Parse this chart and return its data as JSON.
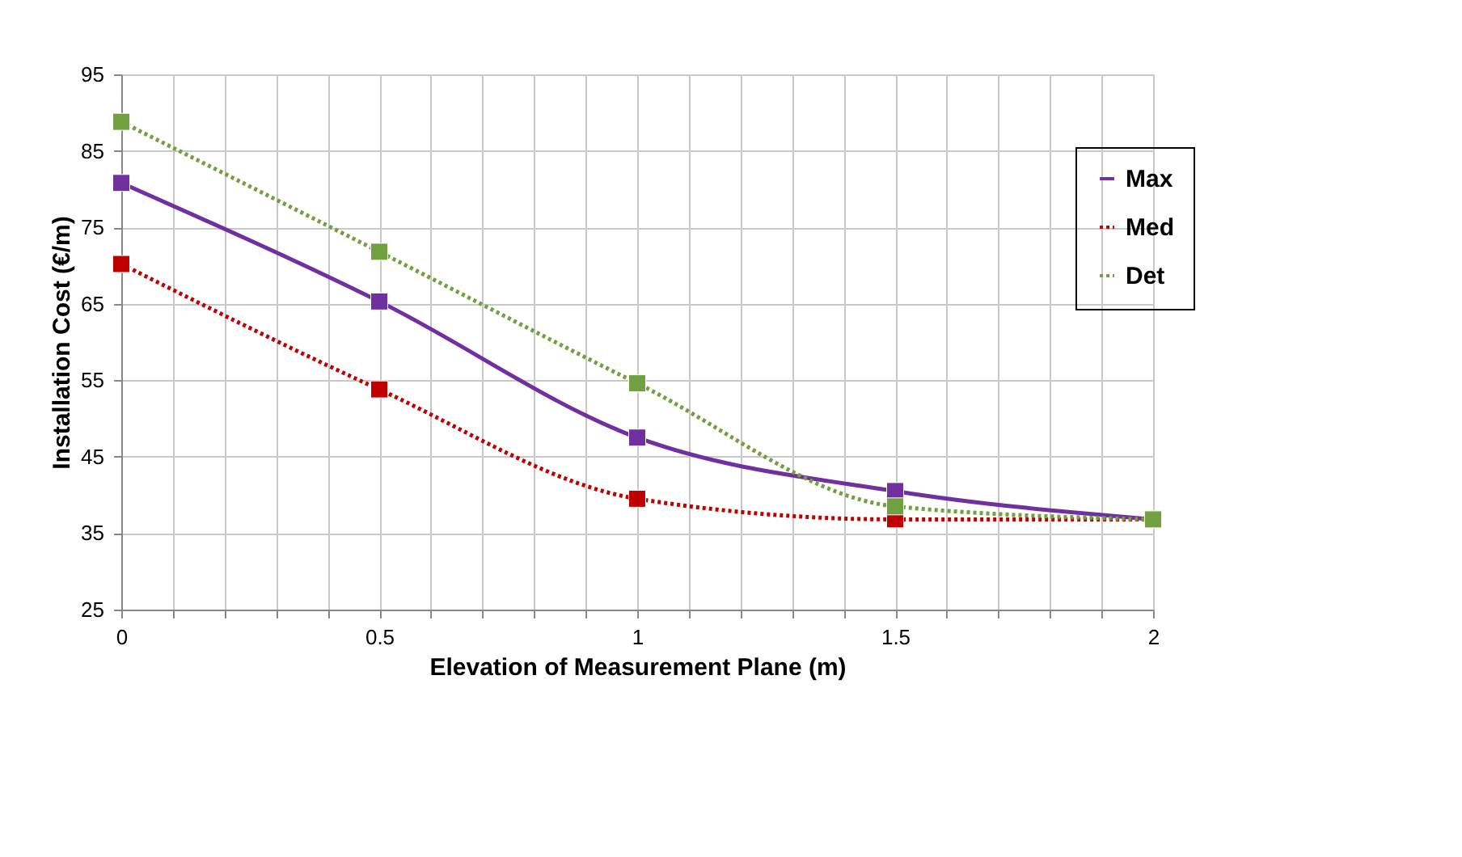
{
  "chart_data": {
    "type": "line",
    "xlabel": "Elevation of Measurement Plane  (m)",
    "ylabel": "Installation Cost (€/m)",
    "x": [
      0,
      0.5,
      1,
      1.5,
      2
    ],
    "series": [
      {
        "name": "Max",
        "color": "#7030a0",
        "values": [
          80.8,
          65.3,
          47.5,
          40.5,
          36.8
        ],
        "line_style": "solid"
      },
      {
        "name": "Med",
        "color": "#c00000",
        "values": [
          70.2,
          53.8,
          39.5,
          36.8,
          36.8
        ],
        "line_style": "dotted"
      },
      {
        "name": "Det",
        "color": "#70a040",
        "values": [
          88.8,
          71.8,
          54.6,
          38.5,
          36.8
        ],
        "line_style": "dotted"
      }
    ],
    "xlim": [
      0,
      2
    ],
    "xticks": [
      0,
      {
        "value": 0.1,
        "label": null
      },
      {
        "value": 0.2,
        "label": null
      },
      {
        "value": 0.3,
        "label": null
      },
      {
        "value": 0.4,
        "label": null
      },
      0.5,
      {
        "value": 0.6,
        "label": null
      },
      {
        "value": 0.7,
        "label": null
      },
      {
        "value": 0.8,
        "label": null
      },
      {
        "value": 0.9,
        "label": null
      },
      1,
      {
        "value": 1.1,
        "label": null
      },
      {
        "value": 1.2,
        "label": null
      },
      {
        "value": 1.3,
        "label": null
      },
      {
        "value": 1.4,
        "label": null
      },
      1.5,
      {
        "value": 1.6,
        "label": null
      },
      {
        "value": 1.7,
        "label": null
      },
      {
        "value": 1.8,
        "label": null
      },
      {
        "value": 1.9,
        "label": null
      },
      2
    ],
    "ylim": [
      25,
      95
    ],
    "yticks": [
      25,
      35,
      45,
      55,
      65,
      75,
      85,
      95
    ],
    "grid": true,
    "legend": "top right",
    "marker": "square"
  }
}
